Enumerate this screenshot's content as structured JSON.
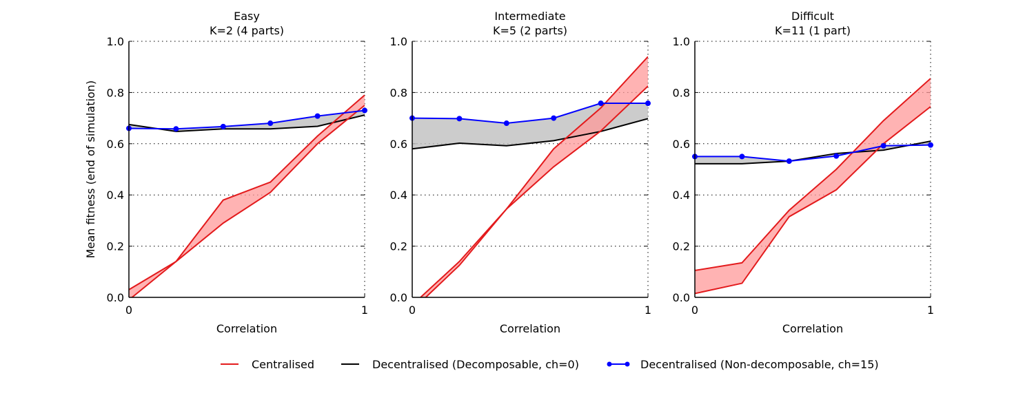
{
  "ylabel": "Mean fitness (end of simulation)",
  "colors": {
    "centralised": "#e31a1c",
    "centralised_fill": "#ff9999",
    "decomposable": "#000000",
    "non_decomposable": "#0000ff",
    "gap_fill": "#bfbfbf"
  },
  "legend": [
    {
      "key": "centralised",
      "label": "Centralised",
      "marker": false
    },
    {
      "key": "decomposable",
      "label": "Decentralised (Decomposable, ch=0)",
      "marker": false
    },
    {
      "key": "non_decomposable",
      "label": "Decentralised (Non-decomposable, ch=15)",
      "marker": true
    }
  ],
  "chart_data": [
    {
      "type": "line",
      "title": "Easy",
      "subtitle": "K=2 (4 parts)",
      "xlabel": "Correlation",
      "xlim": [
        0,
        1
      ],
      "ylim": [
        0,
        1.0
      ],
      "xticks": [
        "0",
        "1"
      ],
      "yticks": [
        "0.0",
        "0.2",
        "0.4",
        "0.6",
        "0.8",
        "1.0"
      ],
      "grid": "y-dotted",
      "x": [
        0,
        0.2,
        0.4,
        0.6,
        0.8,
        1.0
      ],
      "series": [
        {
          "key": "centralised_upper",
          "values": [
            0.03,
            0.14,
            0.38,
            0.45,
            0.63,
            0.79
          ]
        },
        {
          "key": "centralised_lower",
          "values": [
            -0.01,
            0.14,
            0.29,
            0.41,
            0.6,
            0.75
          ]
        },
        {
          "key": "decomposable",
          "values": [
            0.675,
            0.648,
            0.658,
            0.658,
            0.668,
            0.712
          ]
        },
        {
          "key": "non_decomposable",
          "values": [
            0.66,
            0.658,
            0.667,
            0.68,
            0.708,
            0.73
          ]
        }
      ]
    },
    {
      "type": "line",
      "title": "Intermediate",
      "subtitle": "K=5 (2 parts)",
      "xlabel": "Correlation",
      "xlim": [
        0,
        1
      ],
      "ylim": [
        0,
        1.0
      ],
      "xticks": [
        "0",
        "1"
      ],
      "yticks": [
        "0.0",
        "0.2",
        "0.4",
        "0.6",
        "0.8",
        "1.0"
      ],
      "grid": "y-dotted",
      "x": [
        0,
        0.2,
        0.4,
        0.6,
        0.8,
        1.0
      ],
      "series": [
        {
          "key": "centralised_upper",
          "values": [
            -0.03,
            0.14,
            0.345,
            0.58,
            0.74,
            0.94
          ]
        },
        {
          "key": "centralised_lower",
          "values": [
            -0.05,
            0.125,
            0.345,
            0.51,
            0.65,
            0.825
          ]
        },
        {
          "key": "decomposable",
          "values": [
            0.58,
            0.602,
            0.592,
            0.612,
            0.648,
            0.698
          ]
        },
        {
          "key": "non_decomposable",
          "values": [
            0.7,
            0.698,
            0.68,
            0.7,
            0.758,
            0.758
          ]
        }
      ]
    },
    {
      "type": "line",
      "title": "Difficult",
      "subtitle": "K=11 (1 part)",
      "xlabel": "Correlation",
      "xlim": [
        0,
        1
      ],
      "ylim": [
        0,
        1.0
      ],
      "xticks": [
        "0",
        "1"
      ],
      "yticks": [
        "0.0",
        "0.2",
        "0.4",
        "0.6",
        "0.8",
        "1.0"
      ],
      "grid": "y-dotted",
      "x": [
        0,
        0.2,
        0.4,
        0.6,
        0.8,
        1.0
      ],
      "series": [
        {
          "key": "centralised_upper",
          "values": [
            0.105,
            0.135,
            0.34,
            0.5,
            0.69,
            0.855
          ]
        },
        {
          "key": "centralised_lower",
          "values": [
            0.015,
            0.055,
            0.315,
            0.42,
            0.6,
            0.745
          ]
        },
        {
          "key": "decomposable",
          "values": [
            0.522,
            0.522,
            0.532,
            0.562,
            0.575,
            0.61
          ]
        },
        {
          "key": "non_decomposable",
          "values": [
            0.55,
            0.55,
            0.532,
            0.552,
            0.592,
            0.595
          ]
        }
      ]
    }
  ]
}
